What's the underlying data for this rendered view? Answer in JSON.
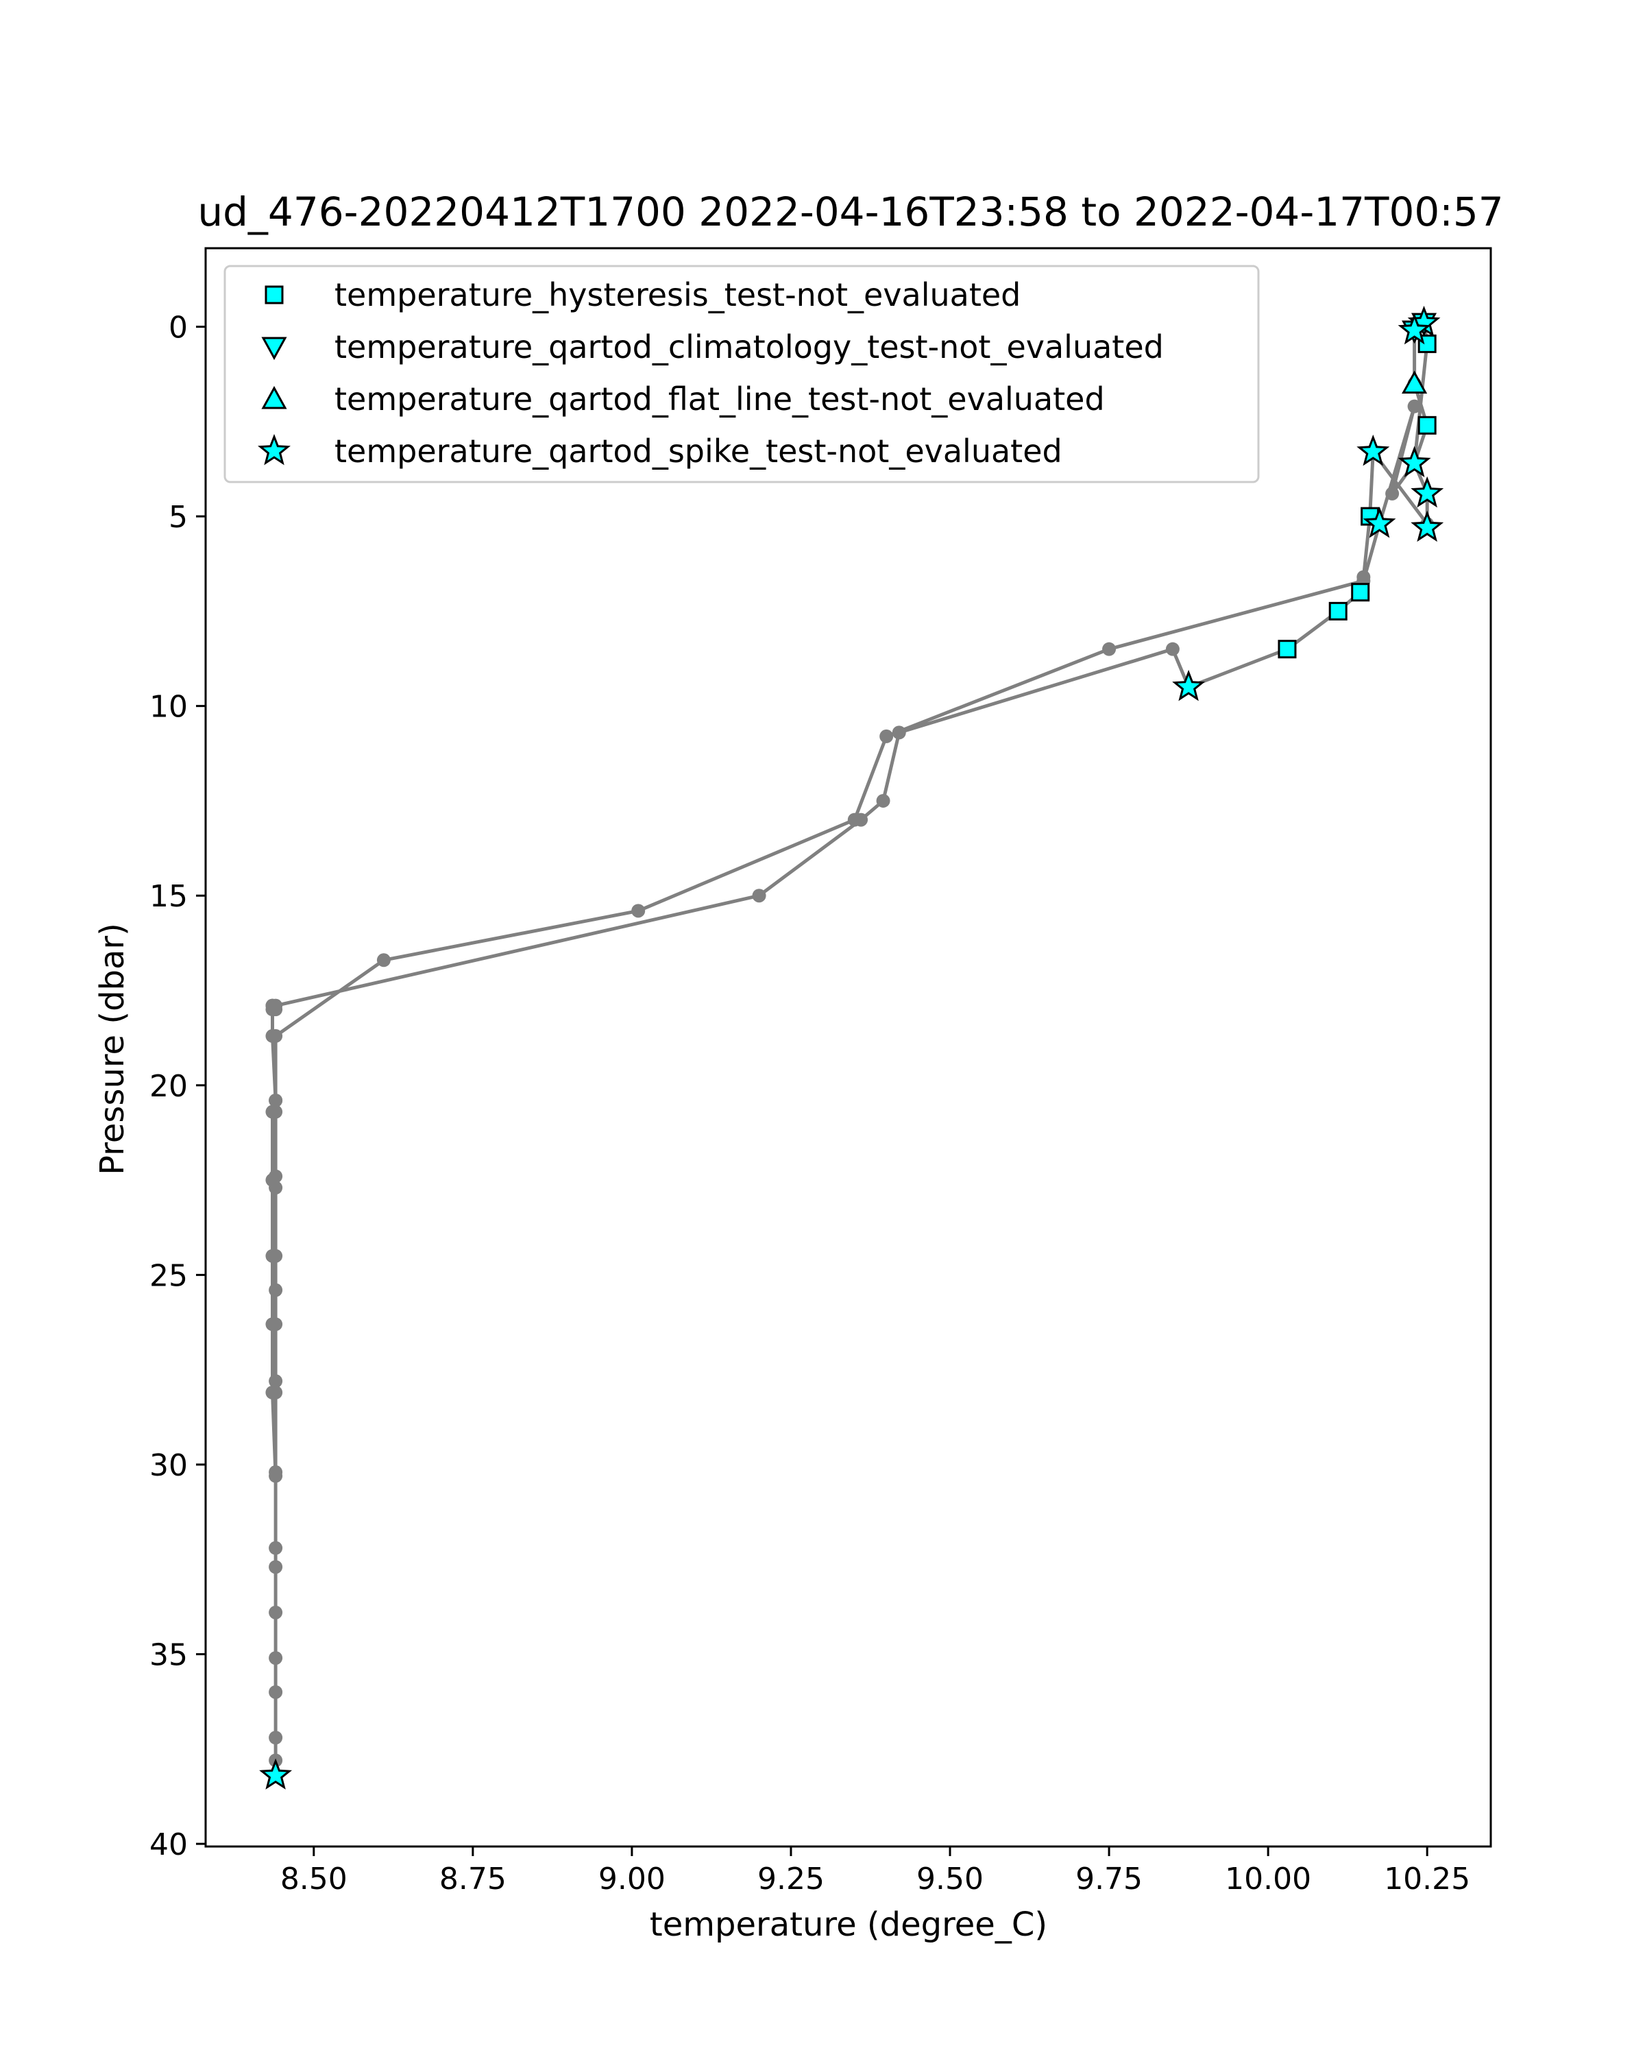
{
  "chart_data": {
    "type": "line",
    "title": "ud_476-20220412T1700 2022-04-16T23:58 to 2022-04-17T00:57",
    "xlabel": "temperature (degree_C)",
    "ylabel": "Pressure (dbar)",
    "xlim": [
      8.33,
      10.35
    ],
    "ylim": [
      40.07,
      -2.07
    ],
    "y_inverted": true,
    "grid": false,
    "legend_position": "top-left",
    "x_ticks": [
      "8.50",
      "8.75",
      "9.00",
      "9.25",
      "9.50",
      "9.75",
      "10.00",
      "10.25"
    ],
    "y_ticks": [
      "0",
      "5",
      "10",
      "15",
      "20",
      "25",
      "30",
      "35",
      "40"
    ],
    "colors": {
      "profile_line": "#808080",
      "marker_fill": "#00ffff",
      "marker_edge": "#000000"
    },
    "profile": {
      "x": [
        10.245,
        10.23,
        10.23,
        10.25,
        10.23,
        10.195,
        10.23,
        10.175,
        10.15,
        9.75,
        9.4,
        9.35,
        9.01,
        8.61,
        8.44,
        8.44,
        8.435,
        8.435,
        8.435,
        8.435,
        8.435,
        8.44,
        8.44,
        8.44,
        8.44,
        8.44,
        8.44,
        8.44,
        8.44,
        8.44,
        8.44,
        8.44,
        8.44,
        8.44,
        8.44,
        8.44,
        8.44,
        8.44,
        8.44,
        8.44,
        8.435,
        8.435,
        8.435,
        8.435,
        8.44,
        8.44,
        9.2,
        9.36,
        9.395,
        9.42,
        9.85,
        9.875,
        10.03,
        10.11,
        10.145,
        10.15,
        10.16,
        10.165,
        10.25,
        10.25,
        10.23,
        10.25,
        10.245
      ],
      "y": [
        -0.1,
        0.1,
        1.5,
        2.6,
        3.6,
        4.4,
        2.1,
        5.2,
        6.7,
        8.5,
        10.8,
        13.0,
        15.4,
        16.7,
        18.7,
        20.4,
        20.7,
        22.5,
        24.5,
        26.3,
        28.1,
        30.3,
        32.7,
        35.1,
        37.2,
        38.2,
        37.8,
        36.0,
        33.9,
        32.2,
        30.2,
        28.1,
        27.8,
        26.3,
        25.4,
        24.5,
        22.7,
        22.4,
        20.7,
        20.4,
        18.7,
        18.0,
        17.9,
        17.9,
        18.0,
        17.9,
        15.0,
        13.0,
        12.5,
        10.7,
        8.5,
        9.5,
        8.5,
        7.5,
        7.0,
        6.6,
        5.0,
        3.3,
        5.2,
        4.4,
        3.6,
        0.4,
        -0.1
      ]
    },
    "series": [
      {
        "name": "temperature_hysteresis_test-not_evaluated",
        "marker": "square",
        "x": [
          10.25,
          10.25,
          10.16,
          10.145,
          10.11,
          10.03
        ],
        "y": [
          0.45,
          2.6,
          5.0,
          7.0,
          7.5,
          8.5
        ]
      },
      {
        "name": "temperature_qartod_climatology_test-not_evaluated",
        "marker": "triangle-down",
        "x": [
          10.245,
          10.23
        ],
        "y": [
          -0.1,
          0.1
        ]
      },
      {
        "name": "temperature_qartod_flat_line_test-not_evaluated",
        "marker": "triangle-up",
        "x": [
          10.23
        ],
        "y": [
          1.5
        ]
      },
      {
        "name": "temperature_qartod_spike_test-not_evaluated",
        "marker": "star",
        "x": [
          10.245,
          10.23,
          10.165,
          10.23,
          10.25,
          10.175,
          10.25,
          9.875,
          8.44
        ],
        "y": [
          -0.1,
          0.1,
          3.3,
          3.6,
          4.4,
          5.2,
          5.3,
          9.5,
          38.2
        ]
      }
    ]
  }
}
